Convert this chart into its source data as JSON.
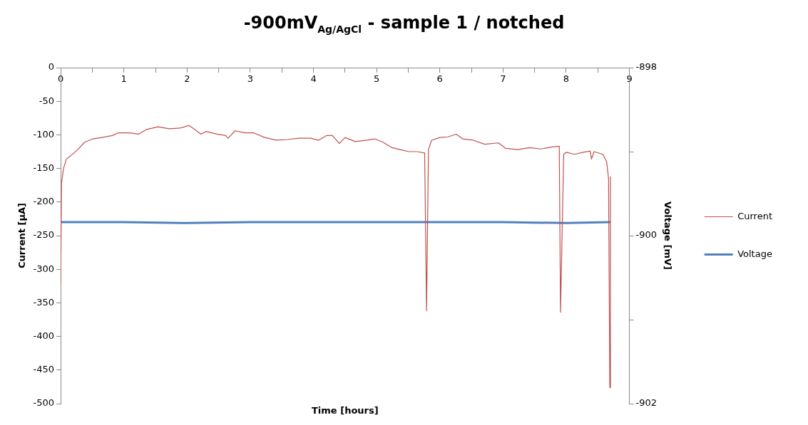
{
  "chart_data": {
    "type": "line",
    "title": "-900mV$_{Ag/AgCl}$ - sample 1 / notched",
    "xlabel": "Time [hours]",
    "ylabel": "Current [µA]",
    "y2label": "Voltage [mV]",
    "xlim": [
      0,
      9
    ],
    "xticks": [
      0,
      {
        "value": 0.5,
        "label": null
      },
      1,
      {
        "value": 1.5,
        "label": null
      },
      2,
      {
        "value": 2.5,
        "label": null
      },
      3,
      {
        "value": 3.5,
        "label": null
      },
      4,
      {
        "value": 4.5,
        "label": null
      },
      5,
      {
        "value": 5.5,
        "label": null
      },
      6,
      {
        "value": 6.5,
        "label": null
      },
      7,
      {
        "value": 7.5,
        "label": null
      },
      8,
      {
        "value": 8.5,
        "label": null
      },
      9
    ],
    "ylim": [
      -500,
      0
    ],
    "yticks": [
      0,
      -50,
      -100,
      -150,
      -200,
      -250,
      -300,
      -350,
      -400,
      -450,
      -500
    ],
    "y2lim": [
      -902,
      -898
    ],
    "y2ticks": [
      -898,
      {
        "value": -899,
        "label": null
      },
      -900,
      {
        "value": -901,
        "label": null
      },
      -902
    ],
    "grid": false,
    "legend": "right",
    "marker": "none",
    "line_style": "solid",
    "series": [
      {
        "name": "Current",
        "color": "#c0504d",
        "x": [
          0,
          0.013,
          0.045,
          0.09,
          0.16,
          0.27,
          0.38,
          0.51,
          0.65,
          0.82,
          0.91,
          1.09,
          1.23,
          1.36,
          1.54,
          1.72,
          1.89,
          2.03,
          2.12,
          2.22,
          2.3,
          2.47,
          2.61,
          2.65,
          2.76,
          2.92,
          3.05,
          3.23,
          3.41,
          3.59,
          3.77,
          3.95,
          4.08,
          4.21,
          4.3,
          4.41,
          4.5,
          4.66,
          4.84,
          4.97,
          5.1,
          5.24,
          5.37,
          5.51,
          5.64,
          5.76,
          5.79,
          5.82,
          5.87,
          6,
          6.13,
          6.26,
          6.36,
          6.53,
          6.71,
          6.93,
          7.04,
          7.24,
          7.42,
          7.6,
          7.78,
          7.89,
          7.91,
          7.96,
          8,
          8.13,
          8.27,
          8.38,
          8.4,
          8.44,
          8.58,
          8.64,
          8.67,
          8.69,
          8.7
        ],
        "values": [
          -320,
          -172,
          -150,
          -136,
          -131,
          -122,
          -111,
          -106,
          -104,
          -101,
          -97,
          -97,
          -99,
          -92,
          -88,
          -91,
          -90,
          -86,
          -92,
          -99,
          -95,
          -99,
          -101,
          -105,
          -94,
          -97,
          -97,
          -104,
          -108,
          -107,
          -105,
          -105,
          -108,
          -101,
          -101,
          -113,
          -104,
          -110,
          -108,
          -106,
          -111,
          -119,
          -122,
          -125,
          -125,
          -127,
          -362,
          -122,
          -108,
          -104,
          -103,
          -99,
          -106,
          -108,
          -114,
          -112,
          -120,
          -122,
          -119,
          -121,
          -118,
          -117,
          -364,
          -129,
          -126,
          -129,
          -126,
          -124,
          -136,
          -125,
          -129,
          -140,
          -165,
          -476,
          -162
        ]
      },
      {
        "name": "Voltage",
        "color": "#4f81bd",
        "axis": "y2",
        "x": [
          0,
          1,
          2,
          3,
          4,
          5,
          6,
          7,
          8,
          8.7
        ],
        "values": [
          -899.84,
          -899.84,
          -899.85,
          -899.84,
          -899.84,
          -899.84,
          -899.84,
          -899.84,
          -899.85,
          -899.84
        ]
      }
    ]
  }
}
